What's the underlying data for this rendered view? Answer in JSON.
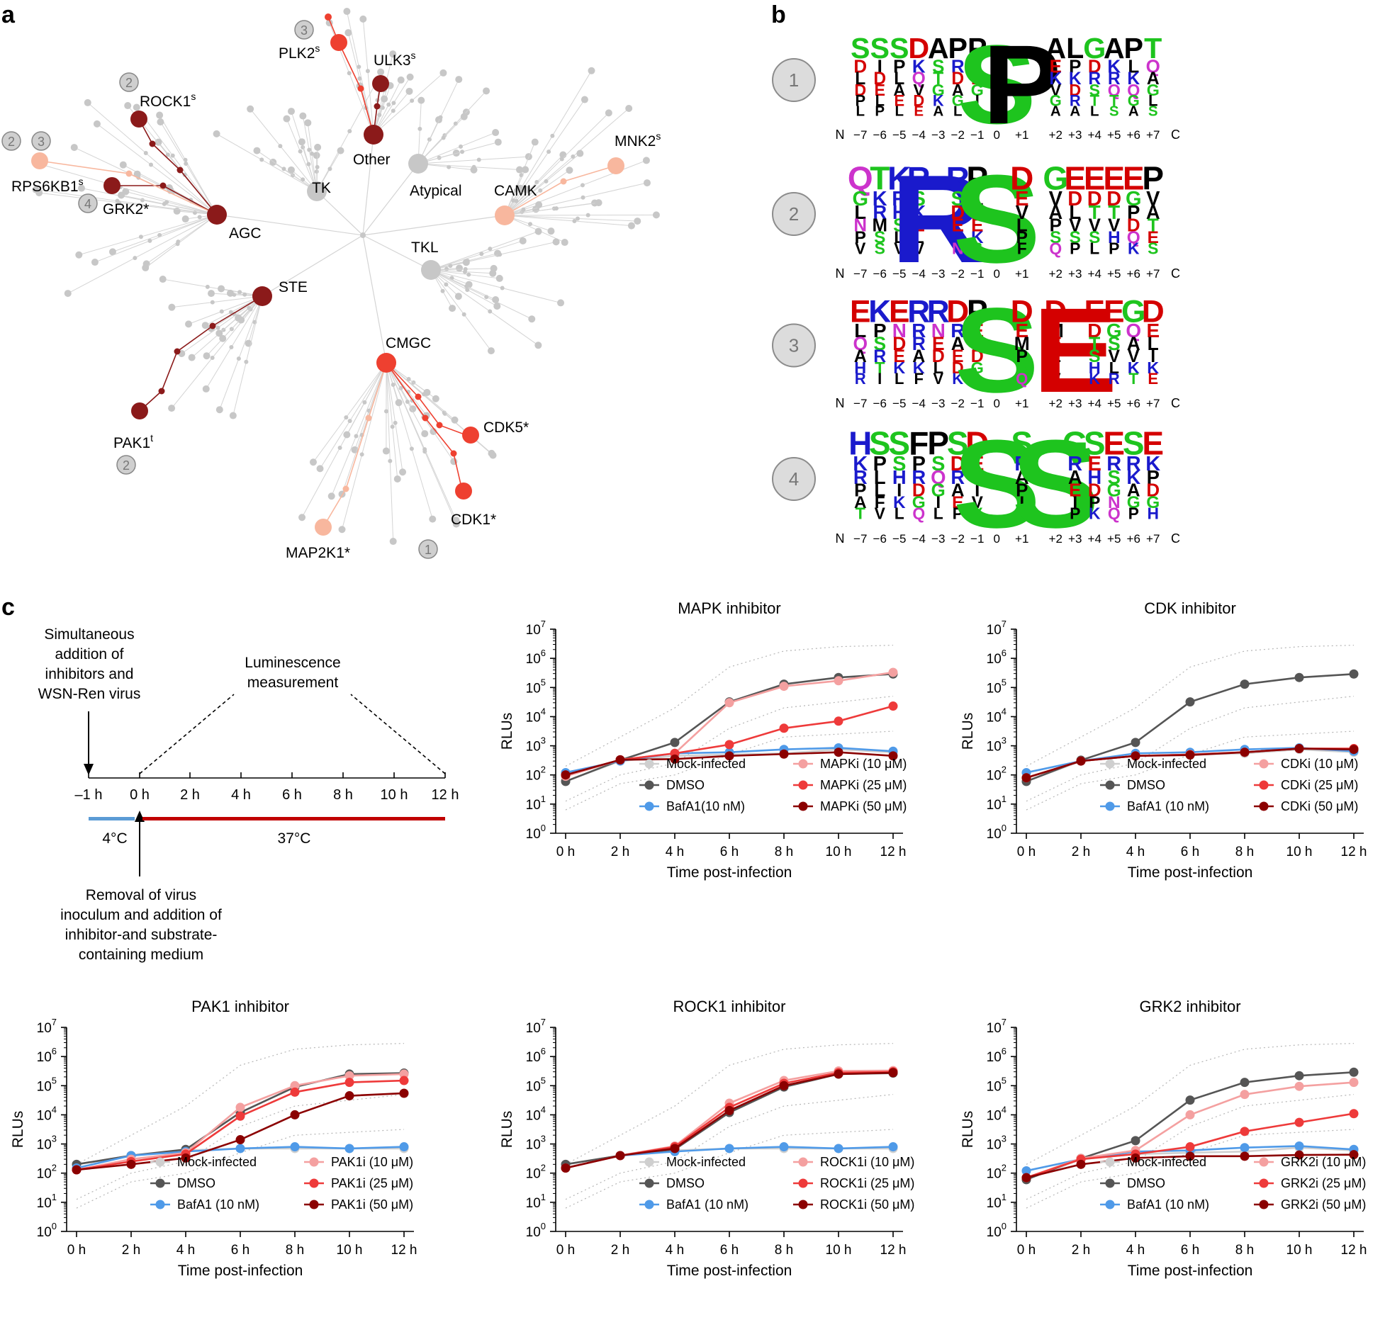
{
  "panels": {
    "a": "a",
    "b": "b",
    "c": "c"
  },
  "tree": {
    "families": [
      "TK",
      "Other",
      "Atypical",
      "CAMK",
      "TKL",
      "AGC",
      "STE",
      "CMGC"
    ],
    "kinases": [
      {
        "name": "PLK2",
        "sup": "s"
      },
      {
        "name": "ULK3",
        "sup": "s"
      },
      {
        "name": "ROCK1",
        "sup": "s"
      },
      {
        "name": "RPS6KB1",
        "sup": "s"
      },
      {
        "name": "GRK2*",
        "sup": ""
      },
      {
        "name": "MNK2",
        "sup": "s"
      },
      {
        "name": "PAK1",
        "sup": "t"
      },
      {
        "name": "CDK5*",
        "sup": ""
      },
      {
        "name": "CDK1*",
        "sup": ""
      },
      {
        "name": "MAP2K1*",
        "sup": ""
      }
    ],
    "badges": [
      "1",
      "2",
      "3",
      "4"
    ]
  },
  "logos": {
    "badges": [
      "1",
      "2",
      "3",
      "4"
    ],
    "n_label": "N",
    "c_label": "C",
    "positions": [
      "−7",
      "−6",
      "−5",
      "−4",
      "−3",
      "−2",
      "−1",
      "0",
      "+1",
      "+2",
      "+3",
      "+4",
      "+5",
      "+6",
      "+7"
    ],
    "motifs": [
      {
        "top": [
          "S",
          "S",
          "S",
          "D",
          "A",
          "P",
          "P",
          "S",
          "P",
          "A",
          "L",
          "G",
          "A",
          "P",
          "T"
        ],
        "stack": [
          "ADLDPL",
          "AIDELP",
          "IPLAEL",
          "EKQVDE",
          "PSTGKA",
          "PRDAGL",
          "SLDGIC",
          "SSSSSS",
          "PPPPPP",
          "PEKVGA",
          "LPKDRA",
          "GDRSTL",
          "AKRQTS",
          "PLKQGA",
          "TQAGLS"
        ]
      },
      {
        "top": [
          "Q",
          "T",
          "K",
          "R",
          "R",
          "R",
          "P",
          "S",
          "D",
          "G",
          "E",
          "E",
          "E",
          "E",
          "P"
        ],
        "stack": [
          "QGLNPV",
          "TKRMSS",
          "KRHSLV",
          "RSKELV",
          "RRRRRR",
          "RSDEKN",
          "PLNEKS",
          "SSSSSS",
          "DEVLPF",
          "GVAPSQ",
          "EDLVSP",
          "EDTVSL",
          "EDTVHP",
          "EGPDQK",
          "PVATES"
        ]
      },
      {
        "top": [
          "E",
          "K",
          "E",
          "R",
          "R",
          "D",
          "P",
          "S",
          "D",
          "D",
          "E",
          "E",
          "E",
          "G",
          "D"
        ],
        "stack": [
          "ELQAHR",
          "KPSRTI",
          "ENDEKL",
          "RRRAKF",
          "RNEDLV",
          "DRAEDK",
          "PEFDGL",
          "SSSSSS",
          "DEMPSQ",
          "DMELIV",
          "EEEEEE",
          "EDTSHK",
          "EGSVLR",
          "GQAVKT",
          "DELIKE"
        ]
      },
      {
        "top": [
          "H",
          "S",
          "S",
          "F",
          "P",
          "S",
          "D",
          "S",
          "S",
          "S",
          "G",
          "S",
          "E",
          "S",
          "E"
        ],
        "stack": [
          "HKRPAT",
          "SPLLFV",
          "SSHIKL",
          "FPRDGQ",
          "PSQGIL",
          "SDRAEP",
          "DEGIVY",
          "SSSSSS",
          "SRAPIY",
          "SSSSSS",
          "GRAEIP",
          "SEHDPK",
          "ERSGNQ",
          "SRKAGP",
          "EKPDGH"
        ]
      }
    ]
  },
  "schematic": {
    "top_note": [
      "Simultaneous",
      "addition of",
      "inhibitors and",
      "WSN-Ren virus"
    ],
    "luminescence": [
      "Luminescence",
      "measurement"
    ],
    "ticks": [
      "–1 h",
      "0 h",
      "2 h",
      "4 h",
      "6 h",
      "8 h",
      "10 h",
      "12 h"
    ],
    "temp_cold": "4°C",
    "temp_warm": "37°C",
    "bottom_note": [
      "Removal of virus",
      "inoculum and addition of",
      "inhibitor-and substrate-",
      "containing medium"
    ],
    "colors": {
      "cold": "#5b9bd5",
      "warm": "#c00000"
    }
  },
  "chart_data": [
    {
      "type": "line",
      "title": "MAPK inhibitor",
      "xlabel": "Time post-infection",
      "ylabel": "RLUs",
      "x": [
        "0 h",
        "2 h",
        "4 h",
        "6 h",
        "8 h",
        "10 h",
        "12 h"
      ],
      "y_ticks": [
        "10^0",
        "10^1",
        "10^2",
        "10^3",
        "10^4",
        "10^5",
        "10^6",
        "10^7"
      ],
      "ylim_log10": [
        0,
        7
      ],
      "yscale": "log",
      "series": [
        {
          "name": "Mock-infected",
          "color": "#cfcfcf",
          "values": [
            60,
            300,
            450,
            500,
            550,
            750,
            600
          ]
        },
        {
          "name": "DMSO",
          "color": "#555555",
          "values": [
            60,
            320,
            1300,
            32000,
            130000,
            220000,
            290000
          ]
        },
        {
          "name": "BafA1(10 nM)",
          "color": "#4f9ae8",
          "values": [
            120,
            300,
            550,
            600,
            750,
            850,
            650
          ]
        },
        {
          "name": "MAPKi (10 μM)",
          "color": "#f4a0a0",
          "values": [
            90,
            330,
            550,
            30000,
            110000,
            170000,
            330000
          ]
        },
        {
          "name": "MAPKi (25 μM)",
          "color": "#ee3a3a",
          "values": [
            100,
            330,
            550,
            1100,
            4000,
            7000,
            23000
          ]
        },
        {
          "name": "MAPKi (50 μM)",
          "color": "#8b0000",
          "values": [
            100,
            330,
            350,
            450,
            520,
            600,
            450
          ]
        }
      ]
    },
    {
      "type": "line",
      "title": "CDK inhibitor",
      "xlabel": "Time post-infection",
      "ylabel": "RLUs",
      "x": [
        "0 h",
        "2 h",
        "4 h",
        "6 h",
        "8 h",
        "10 h",
        "12 h"
      ],
      "y_ticks": [
        "10^0",
        "10^1",
        "10^2",
        "10^3",
        "10^4",
        "10^5",
        "10^6",
        "10^7"
      ],
      "ylim_log10": [
        0,
        7
      ],
      "yscale": "log",
      "series": [
        {
          "name": "Mock-infected",
          "color": "#cfcfcf",
          "values": [
            60,
            300,
            450,
            500,
            550,
            750,
            600
          ]
        },
        {
          "name": "DMSO",
          "color": "#555555",
          "values": [
            60,
            320,
            1300,
            32000,
            130000,
            220000,
            290000
          ]
        },
        {
          "name": "BafA1 (10 nM)",
          "color": "#4f9ae8",
          "values": [
            120,
            300,
            550,
            600,
            750,
            850,
            650
          ]
        },
        {
          "name": "CDKi (10 μM)",
          "color": "#f4a0a0",
          "values": [
            80,
            300,
            450,
            500,
            600,
            800,
            800
          ]
        },
        {
          "name": "CDKi (25 μM)",
          "color": "#ee3a3a",
          "values": [
            80,
            300,
            450,
            500,
            600,
            800,
            800
          ]
        },
        {
          "name": "CDKi (50 μM)",
          "color": "#8b0000",
          "values": [
            80,
            300,
            450,
            480,
            600,
            800,
            750
          ]
        }
      ]
    },
    {
      "type": "line",
      "title": "PAK1 inhibitor",
      "xlabel": "Time post-infection",
      "ylabel": "RLUs",
      "x": [
        "0 h",
        "2 h",
        "4 h",
        "6 h",
        "8 h",
        "10 h",
        "12 h"
      ],
      "y_ticks": [
        "10^0",
        "10^1",
        "10^2",
        "10^3",
        "10^4",
        "10^5",
        "10^6",
        "10^7"
      ],
      "ylim_log10": [
        0,
        7
      ],
      "yscale": "log",
      "series": [
        {
          "name": "Mock-infected",
          "color": "#cfcfcf",
          "values": [
            200,
            400,
            600,
            700,
            700,
            700,
            700
          ]
        },
        {
          "name": "DMSO",
          "color": "#555555",
          "values": [
            200,
            400,
            650,
            12000,
            90000,
            250000,
            270000
          ]
        },
        {
          "name": "BafA1 (10 nM)",
          "color": "#4f9ae8",
          "values": [
            150,
            400,
            550,
            700,
            800,
            700,
            800
          ]
        },
        {
          "name": "PAK1i (10 μM)",
          "color": "#f4a0a0",
          "values": [
            130,
            300,
            500,
            18000,
            100000,
            220000,
            250000
          ]
        },
        {
          "name": "PAK1i (25 μM)",
          "color": "#ee3a3a",
          "values": [
            130,
            250,
            450,
            9000,
            60000,
            130000,
            150000
          ]
        },
        {
          "name": "PAK1i (50 μM)",
          "color": "#8b0000",
          "values": [
            130,
            200,
            330,
            1400,
            10000,
            45000,
            55000
          ]
        }
      ]
    },
    {
      "type": "line",
      "title": "ROCK1 inhibitor",
      "xlabel": "Time post-infection",
      "ylabel": "RLUs",
      "x": [
        "0 h",
        "2 h",
        "4 h",
        "6 h",
        "8 h",
        "10 h",
        "12 h"
      ],
      "y_ticks": [
        "10^0",
        "10^1",
        "10^2",
        "10^3",
        "10^4",
        "10^5",
        "10^6",
        "10^7"
      ],
      "ylim_log10": [
        0,
        7
      ],
      "yscale": "log",
      "series": [
        {
          "name": "Mock-infected",
          "color": "#cfcfcf",
          "values": [
            200,
            400,
            600,
            700,
            700,
            700,
            700
          ]
        },
        {
          "name": "DMSO",
          "color": "#555555",
          "values": [
            200,
            400,
            650,
            12000,
            90000,
            250000,
            270000
          ]
        },
        {
          "name": "BafA1 (10 nM)",
          "color": "#4f9ae8",
          "values": [
            150,
            400,
            550,
            700,
            800,
            700,
            800
          ]
        },
        {
          "name": "ROCK1i (10 μM)",
          "color": "#f4a0a0",
          "values": [
            150,
            400,
            850,
            25000,
            150000,
            320000,
            330000
          ]
        },
        {
          "name": "ROCK1i (25 μM)",
          "color": "#ee3a3a",
          "values": [
            150,
            400,
            800,
            18000,
            120000,
            280000,
            300000
          ]
        },
        {
          "name": "ROCK1i (50 μM)",
          "color": "#8b0000",
          "values": [
            150,
            400,
            700,
            14000,
            100000,
            250000,
            280000
          ]
        }
      ]
    },
    {
      "type": "line",
      "title": "GRK2 inhibitor",
      "xlabel": "Time post-infection",
      "ylabel": "RLUs",
      "x": [
        "0 h",
        "2 h",
        "4 h",
        "6 h",
        "8 h",
        "10 h",
        "12 h"
      ],
      "y_ticks": [
        "10^0",
        "10^1",
        "10^2",
        "10^3",
        "10^4",
        "10^5",
        "10^6",
        "10^7"
      ],
      "ylim_log10": [
        0,
        7
      ],
      "yscale": "log",
      "series": [
        {
          "name": "Mock-infected",
          "color": "#cfcfcf",
          "values": [
            60,
            300,
            450,
            500,
            550,
            750,
            600
          ]
        },
        {
          "name": "DMSO",
          "color": "#555555",
          "values": [
            60,
            320,
            1300,
            32000,
            130000,
            220000,
            290000
          ]
        },
        {
          "name": "BafA1 (10 nM)",
          "color": "#4f9ae8",
          "values": [
            120,
            300,
            550,
            600,
            750,
            850,
            650
          ]
        },
        {
          "name": "GRK2i (10 μM)",
          "color": "#f4a0a0",
          "values": [
            70,
            320,
            600,
            10000,
            50000,
            95000,
            130000
          ]
        },
        {
          "name": "GRK2i (25 μM)",
          "color": "#ee3a3a",
          "values": [
            70,
            300,
            450,
            800,
            2700,
            5500,
            11000
          ]
        },
        {
          "name": "GRK2i (50 μM)",
          "color": "#8b0000",
          "values": [
            70,
            200,
            330,
            380,
            380,
            420,
            430
          ]
        }
      ]
    }
  ]
}
